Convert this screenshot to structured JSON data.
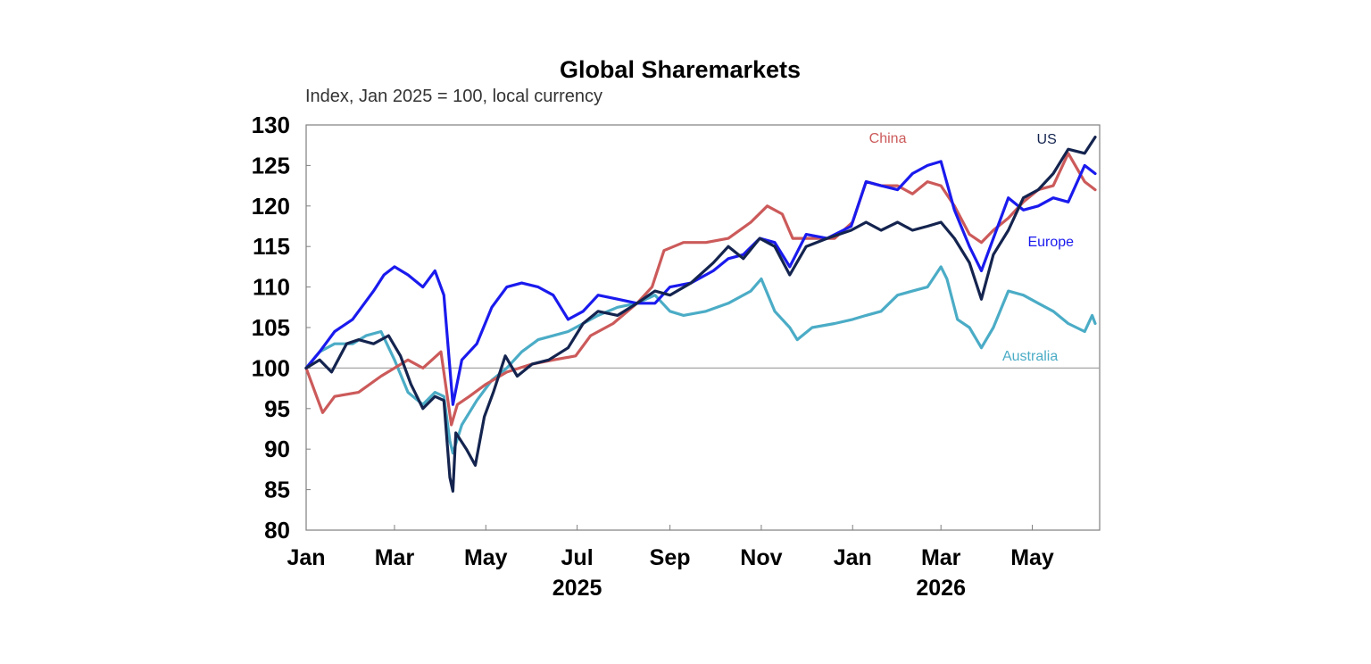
{
  "chart_data": {
    "type": "line",
    "title": "Global Sharemarkets",
    "subtitle": "Index, Jan 2025 = 100, local currency",
    "ylim": [
      80,
      130
    ],
    "yticks": [
      "130",
      "125",
      "120",
      "115",
      "110",
      "105",
      "100",
      "95",
      "90",
      "85",
      "80"
    ],
    "xlim": [
      "2025-01-01",
      "2026-06-15"
    ],
    "xticks": [
      {
        "label": "Jan",
        "date": "2025-01-01"
      },
      {
        "label": "Mar",
        "date": "2025-03-01"
      },
      {
        "label": "May",
        "date": "2025-05-01"
      },
      {
        "label": "Jul",
        "date": "2025-07-01"
      },
      {
        "label": "Sep",
        "date": "2025-09-01"
      },
      {
        "label": "Nov",
        "date": "2025-11-01"
      },
      {
        "label": "Jan",
        "date": "2026-01-01"
      },
      {
        "label": "Mar",
        "date": "2026-03-01"
      },
      {
        "label": "May",
        "date": "2026-05-01"
      }
    ],
    "year_labels": [
      {
        "label": "2025",
        "date": "2025-07-01"
      },
      {
        "label": "2026",
        "date": "2026-03-01"
      }
    ],
    "reference_line": 100,
    "grid": false,
    "series": [
      {
        "name": "US",
        "color": "#14244f",
        "points": [
          [
            "2025-01-01",
            100
          ],
          [
            "2025-01-10",
            101
          ],
          [
            "2025-01-18",
            99.5
          ],
          [
            "2025-01-28",
            103
          ],
          [
            "2025-02-05",
            103.5
          ],
          [
            "2025-02-15",
            103
          ],
          [
            "2025-02-25",
            104
          ],
          [
            "2025-03-05",
            101.5
          ],
          [
            "2025-03-12",
            98
          ],
          [
            "2025-03-20",
            95
          ],
          [
            "2025-03-28",
            96.5
          ],
          [
            "2025-04-03",
            96
          ],
          [
            "2025-04-07",
            86.5
          ],
          [
            "2025-04-09",
            84.8
          ],
          [
            "2025-04-11",
            92
          ],
          [
            "2025-04-18",
            90
          ],
          [
            "2025-04-24",
            88
          ],
          [
            "2025-04-30",
            94
          ],
          [
            "2025-05-06",
            97
          ],
          [
            "2025-05-14",
            101.5
          ],
          [
            "2025-05-22",
            99
          ],
          [
            "2025-06-01",
            100.5
          ],
          [
            "2025-06-12",
            101
          ],
          [
            "2025-06-25",
            102.5
          ],
          [
            "2025-07-05",
            105.5
          ],
          [
            "2025-07-15",
            107
          ],
          [
            "2025-07-28",
            106.5
          ],
          [
            "2025-08-10",
            108
          ],
          [
            "2025-08-22",
            109.5
          ],
          [
            "2025-09-01",
            109
          ],
          [
            "2025-09-15",
            110.5
          ],
          [
            "2025-09-30",
            113
          ],
          [
            "2025-10-10",
            115
          ],
          [
            "2025-10-20",
            113.5
          ],
          [
            "2025-10-31",
            116
          ],
          [
            "2025-11-10",
            115
          ],
          [
            "2025-11-20",
            111.5
          ],
          [
            "2025-12-01",
            115
          ],
          [
            "2025-12-15",
            116
          ],
          [
            "2025-12-31",
            117
          ],
          [
            "2026-01-10",
            118
          ],
          [
            "2026-01-20",
            117
          ],
          [
            "2026-01-31",
            118
          ],
          [
            "2026-02-10",
            117
          ],
          [
            "2026-02-20",
            117.5
          ],
          [
            "2026-03-01",
            118
          ],
          [
            "2026-03-10",
            116
          ],
          [
            "2026-03-20",
            113
          ],
          [
            "2026-03-28",
            108.5
          ],
          [
            "2026-04-05",
            114
          ],
          [
            "2026-04-15",
            117
          ],
          [
            "2026-04-25",
            121
          ],
          [
            "2026-05-05",
            122
          ],
          [
            "2026-05-15",
            124
          ],
          [
            "2026-05-25",
            127
          ],
          [
            "2026-06-05",
            126.5
          ],
          [
            "2026-06-12",
            128.5
          ]
        ]
      },
      {
        "name": "China",
        "color": "#cc5a5a",
        "points": [
          [
            "2025-01-01",
            100
          ],
          [
            "2025-01-08",
            96.5
          ],
          [
            "2025-01-12",
            94.5
          ],
          [
            "2025-01-20",
            96.5
          ],
          [
            "2025-02-05",
            97
          ],
          [
            "2025-02-20",
            99
          ],
          [
            "2025-03-01",
            100
          ],
          [
            "2025-03-10",
            101
          ],
          [
            "2025-03-20",
            100
          ],
          [
            "2025-04-01",
            102
          ],
          [
            "2025-04-08",
            93
          ],
          [
            "2025-04-12",
            95.5
          ],
          [
            "2025-04-20",
            96.5
          ],
          [
            "2025-05-01",
            98
          ],
          [
            "2025-05-15",
            99.5
          ],
          [
            "2025-06-01",
            100.5
          ],
          [
            "2025-06-15",
            101
          ],
          [
            "2025-06-30",
            101.5
          ],
          [
            "2025-07-10",
            104
          ],
          [
            "2025-07-25",
            105.5
          ],
          [
            "2025-08-10",
            108
          ],
          [
            "2025-08-20",
            110
          ],
          [
            "2025-08-28",
            114.5
          ],
          [
            "2025-09-10",
            115.5
          ],
          [
            "2025-09-25",
            115.5
          ],
          [
            "2025-10-10",
            116
          ],
          [
            "2025-10-25",
            118
          ],
          [
            "2025-11-05",
            120
          ],
          [
            "2025-11-15",
            119
          ],
          [
            "2025-11-22",
            116
          ],
          [
            "2025-12-05",
            116
          ],
          [
            "2025-12-20",
            116
          ],
          [
            "2026-01-01",
            118
          ],
          [
            "2026-01-10",
            123
          ],
          [
            "2026-01-20",
            122.5
          ],
          [
            "2026-01-31",
            122.5
          ],
          [
            "2026-02-10",
            121.5
          ],
          [
            "2026-02-20",
            123
          ],
          [
            "2026-03-01",
            122.5
          ],
          [
            "2026-03-10",
            120
          ],
          [
            "2026-03-20",
            116.5
          ],
          [
            "2026-03-28",
            115.5
          ],
          [
            "2026-04-05",
            117
          ],
          [
            "2026-04-15",
            118.5
          ],
          [
            "2026-04-25",
            120.5
          ],
          [
            "2026-05-05",
            122
          ],
          [
            "2026-05-15",
            122.5
          ],
          [
            "2026-05-25",
            126.5
          ],
          [
            "2026-06-05",
            123
          ],
          [
            "2026-06-12",
            122
          ]
        ]
      },
      {
        "name": "Europe",
        "color": "#1a1aee",
        "points": [
          [
            "2025-01-01",
            100
          ],
          [
            "2025-01-10",
            102
          ],
          [
            "2025-01-20",
            104.5
          ],
          [
            "2025-02-01",
            106
          ],
          [
            "2025-02-15",
            109.5
          ],
          [
            "2025-02-22",
            111.5
          ],
          [
            "2025-03-01",
            112.5
          ],
          [
            "2025-03-10",
            111.5
          ],
          [
            "2025-03-20",
            110
          ],
          [
            "2025-03-28",
            112
          ],
          [
            "2025-04-03",
            109
          ],
          [
            "2025-04-07",
            100
          ],
          [
            "2025-04-09",
            95.5
          ],
          [
            "2025-04-15",
            101
          ],
          [
            "2025-04-25",
            103
          ],
          [
            "2025-05-05",
            107.5
          ],
          [
            "2025-05-15",
            110
          ],
          [
            "2025-05-25",
            110.5
          ],
          [
            "2025-06-05",
            110
          ],
          [
            "2025-06-15",
            109
          ],
          [
            "2025-06-25",
            106
          ],
          [
            "2025-07-05",
            107
          ],
          [
            "2025-07-15",
            109
          ],
          [
            "2025-07-28",
            108.5
          ],
          [
            "2025-08-10",
            108
          ],
          [
            "2025-08-22",
            108
          ],
          [
            "2025-09-01",
            110
          ],
          [
            "2025-09-15",
            110.5
          ],
          [
            "2025-09-30",
            112
          ],
          [
            "2025-10-10",
            113.5
          ],
          [
            "2025-10-20",
            114
          ],
          [
            "2025-10-31",
            116
          ],
          [
            "2025-11-10",
            115.5
          ],
          [
            "2025-11-20",
            112.5
          ],
          [
            "2025-12-01",
            116.5
          ],
          [
            "2025-12-15",
            116
          ],
          [
            "2025-12-31",
            117.5
          ],
          [
            "2026-01-10",
            123
          ],
          [
            "2026-01-20",
            122.5
          ],
          [
            "2026-01-31",
            122
          ],
          [
            "2026-02-10",
            124
          ],
          [
            "2026-02-20",
            125
          ],
          [
            "2026-03-01",
            125.5
          ],
          [
            "2026-03-10",
            119.5
          ],
          [
            "2026-03-20",
            115
          ],
          [
            "2026-03-28",
            112
          ],
          [
            "2026-04-05",
            116
          ],
          [
            "2026-04-15",
            121
          ],
          [
            "2026-04-25",
            119.5
          ],
          [
            "2026-05-05",
            120
          ],
          [
            "2026-05-15",
            121
          ],
          [
            "2026-05-25",
            120.5
          ],
          [
            "2026-06-05",
            125
          ],
          [
            "2026-06-12",
            124
          ]
        ]
      },
      {
        "name": "Australia",
        "color": "#4bacc6",
        "points": [
          [
            "2025-01-01",
            100
          ],
          [
            "2025-01-10",
            102
          ],
          [
            "2025-01-20",
            103
          ],
          [
            "2025-02-01",
            103
          ],
          [
            "2025-02-10",
            104
          ],
          [
            "2025-02-20",
            104.5
          ],
          [
            "2025-03-01",
            101
          ],
          [
            "2025-03-10",
            97
          ],
          [
            "2025-03-20",
            95.5
          ],
          [
            "2025-03-28",
            97
          ],
          [
            "2025-04-03",
            96.5
          ],
          [
            "2025-04-07",
            91
          ],
          [
            "2025-04-09",
            89.5
          ],
          [
            "2025-04-15",
            93
          ],
          [
            "2025-04-25",
            96
          ],
          [
            "2025-05-05",
            98.5
          ],
          [
            "2025-05-15",
            100
          ],
          [
            "2025-05-25",
            102
          ],
          [
            "2025-06-05",
            103.5
          ],
          [
            "2025-06-15",
            104
          ],
          [
            "2025-06-25",
            104.5
          ],
          [
            "2025-07-05",
            105.5
          ],
          [
            "2025-07-15",
            106.5
          ],
          [
            "2025-07-28",
            107.5
          ],
          [
            "2025-08-10",
            108
          ],
          [
            "2025-08-22",
            109
          ],
          [
            "2025-09-01",
            107
          ],
          [
            "2025-09-10",
            106.5
          ],
          [
            "2025-09-25",
            107
          ],
          [
            "2025-10-10",
            108
          ],
          [
            "2025-10-25",
            109.5
          ],
          [
            "2025-11-01",
            111
          ],
          [
            "2025-11-10",
            107
          ],
          [
            "2025-11-20",
            105
          ],
          [
            "2025-11-25",
            103.5
          ],
          [
            "2025-12-05",
            105
          ],
          [
            "2025-12-20",
            105.5
          ],
          [
            "2026-01-01",
            106
          ],
          [
            "2026-01-10",
            106.5
          ],
          [
            "2026-01-20",
            107
          ],
          [
            "2026-01-31",
            109
          ],
          [
            "2026-02-10",
            109.5
          ],
          [
            "2026-02-20",
            110
          ],
          [
            "2026-03-01",
            112.5
          ],
          [
            "2026-03-05",
            111
          ],
          [
            "2026-03-12",
            106
          ],
          [
            "2026-03-20",
            105
          ],
          [
            "2026-03-28",
            102.5
          ],
          [
            "2026-04-05",
            105
          ],
          [
            "2026-04-15",
            109.5
          ],
          [
            "2026-04-25",
            109
          ],
          [
            "2026-05-05",
            108
          ],
          [
            "2026-05-15",
            107
          ],
          [
            "2026-05-25",
            105.5
          ],
          [
            "2026-06-05",
            104.5
          ],
          [
            "2026-06-10",
            106.5
          ],
          [
            "2026-06-12",
            105.5
          ]
        ]
      }
    ],
    "series_label_anchors": {
      "US": [
        "2026-05-04",
        127.7
      ],
      "China": [
        "2026-01-12",
        127.8
      ],
      "Europe": [
        "2026-04-28",
        115
      ],
      "Australia": [
        "2026-04-11",
        100.9
      ]
    }
  }
}
